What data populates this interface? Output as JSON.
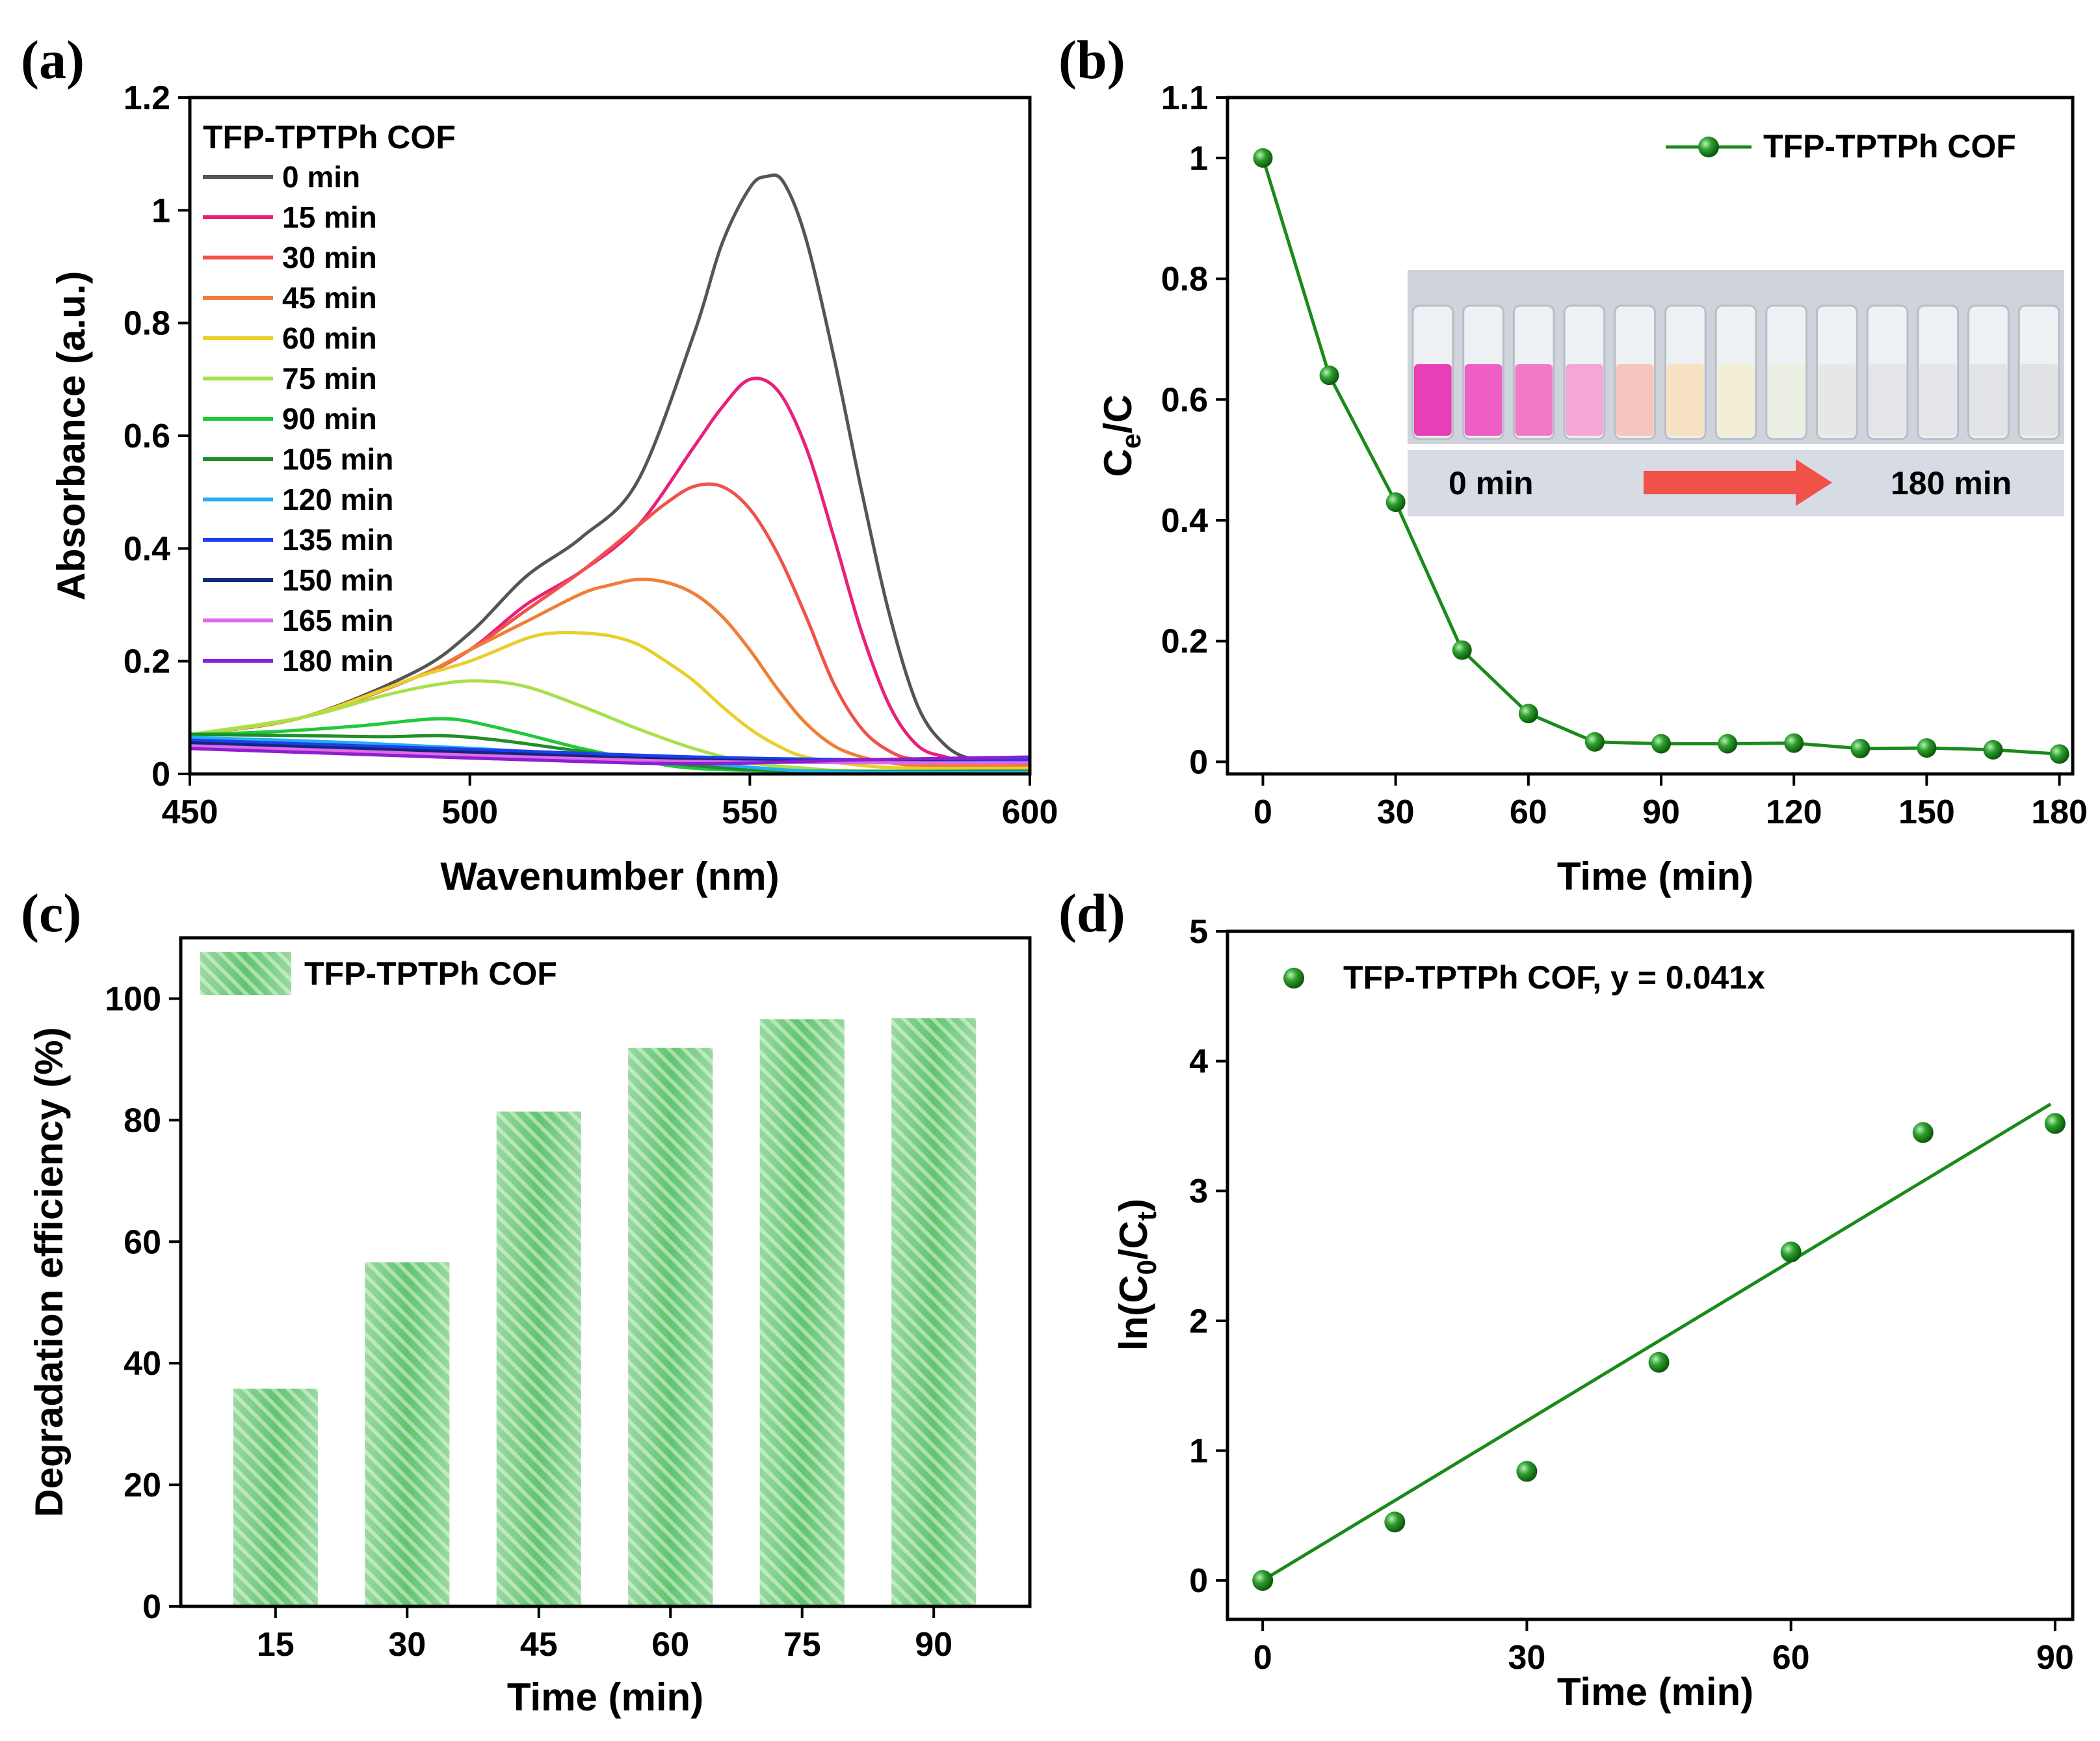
{
  "colors": {
    "series_green": "#1a8a1a",
    "bar_green": "#5cc46a",
    "bar_green_light": "#a9e4ac",
    "arrow_red": "#f0524a",
    "inset_label_bg": "#d8dde6"
  },
  "chart_data": [
    {
      "id": "a",
      "panel_label": "(a)",
      "type": "line",
      "xlabel": "Wavenumber (nm)",
      "ylabel": "Absorbance (a.u.)",
      "xlim": [
        450,
        600
      ],
      "ylim": [
        0,
        1.2
      ],
      "xticks": [
        450,
        500,
        550,
        600
      ],
      "xtick_labels": [
        "450",
        "500",
        "550",
        "600"
      ],
      "yticks": [
        0,
        0.2,
        0.4,
        0.6,
        0.8,
        1,
        1.2
      ],
      "ytick_labels": [
        "0",
        "0.2",
        "0.4",
        "0.6",
        "0.8",
        "1",
        "1.2"
      ],
      "legend_title": "TFP-TPTPh COF",
      "series": [
        {
          "name": "0 min",
          "color": "#555555",
          "values": {
            "x": [
              450,
              470,
              490,
              500,
              510,
              520,
              530,
              540,
              545,
              550,
              553,
              556,
              560,
              565,
              570,
              575,
              580,
              585,
              590,
              595,
              600
            ],
            "y": [
              0.07,
              0.1,
              0.18,
              0.25,
              0.35,
              0.42,
              0.52,
              0.78,
              0.94,
              1.04,
              1.06,
              1.05,
              0.95,
              0.74,
              0.5,
              0.28,
              0.12,
              0.05,
              0.025,
              0.02,
              0.02
            ]
          }
        },
        {
          "name": "15 min",
          "color": "#e8207a",
          "values": {
            "x": [
              450,
              470,
              490,
              500,
              510,
              520,
              530,
              540,
              545,
              550,
              555,
              560,
              565,
              570,
              575,
              580,
              585,
              590,
              600
            ],
            "y": [
              0.07,
              0.1,
              0.17,
              0.22,
              0.3,
              0.36,
              0.44,
              0.58,
              0.65,
              0.7,
              0.68,
              0.58,
              0.42,
              0.25,
              0.12,
              0.05,
              0.03,
              0.02,
              0.02
            ]
          }
        },
        {
          "name": "30 min",
          "color": "#f0524a",
          "values": {
            "x": [
              450,
              470,
              490,
              500,
              510,
              520,
              530,
              535,
              540,
              545,
              550,
              555,
              560,
              565,
              570,
              575,
              580,
              590,
              600
            ],
            "y": [
              0.07,
              0.1,
              0.17,
              0.22,
              0.29,
              0.36,
              0.44,
              0.48,
              0.51,
              0.51,
              0.47,
              0.39,
              0.28,
              0.16,
              0.08,
              0.04,
              0.025,
              0.02,
              0.02
            ]
          }
        },
        {
          "name": "45 min",
          "color": "#f07e36",
          "values": {
            "x": [
              450,
              470,
              490,
              500,
              510,
              520,
              525,
              530,
              535,
              540,
              545,
              550,
              555,
              560,
              565,
              570,
              575,
              580,
              590,
              600
            ],
            "y": [
              0.07,
              0.1,
              0.17,
              0.22,
              0.27,
              0.32,
              0.335,
              0.345,
              0.34,
              0.32,
              0.28,
              0.22,
              0.15,
              0.09,
              0.05,
              0.03,
              0.02,
              0.015,
              0.015,
              0.015
            ]
          }
        },
        {
          "name": "60 min",
          "color": "#e8cf2a",
          "values": {
            "x": [
              450,
              470,
              490,
              500,
              510,
              515,
              520,
              525,
              530,
              535,
              540,
              545,
              550,
              555,
              560,
              570,
              580,
              600
            ],
            "y": [
              0.07,
              0.1,
              0.17,
              0.2,
              0.24,
              0.25,
              0.25,
              0.245,
              0.23,
              0.2,
              0.165,
              0.12,
              0.08,
              0.05,
              0.03,
              0.015,
              0.01,
              0.01
            ]
          }
        },
        {
          "name": "75 min",
          "color": "#a8e04a",
          "values": {
            "x": [
              450,
              470,
              485,
              495,
              502,
              510,
              520,
              530,
              540,
              550,
              560,
              570,
              600
            ],
            "y": [
              0.07,
              0.1,
              0.14,
              0.16,
              0.165,
              0.155,
              0.12,
              0.08,
              0.045,
              0.02,
              0.01,
              0.005,
              0.005
            ]
          }
        },
        {
          "name": "90 min",
          "color": "#22c83a",
          "values": {
            "x": [
              450,
              465,
              480,
              490,
              495,
              500,
              510,
              520,
              530,
              540,
              560,
              600
            ],
            "y": [
              0.07,
              0.075,
              0.085,
              0.095,
              0.098,
              0.093,
              0.07,
              0.045,
              0.025,
              0.01,
              0.005,
              0.005
            ]
          }
        },
        {
          "name": "105 min",
          "color": "#1f8f2a",
          "values": {
            "x": [
              450,
              470,
              485,
              495,
              505,
              520,
              540,
              560,
              600
            ],
            "y": [
              0.07,
              0.068,
              0.066,
              0.068,
              0.06,
              0.04,
              0.015,
              0.005,
              0.005
            ]
          }
        },
        {
          "name": "120 min",
          "color": "#26aef0",
          "values": {
            "x": [
              450,
              480,
              510,
              540,
              560,
              580,
              600
            ],
            "y": [
              0.065,
              0.055,
              0.04,
              0.02,
              0.005,
              0.003,
              0.003
            ]
          }
        },
        {
          "name": "135 min",
          "color": "#1b3ff0",
          "values": {
            "x": [
              450,
              480,
              510,
              540,
              570,
              600
            ],
            "y": [
              0.06,
              0.05,
              0.04,
              0.03,
              0.025,
              0.025
            ]
          }
        },
        {
          "name": "150 min",
          "color": "#13287a",
          "values": {
            "x": [
              450,
              480,
              510,
              540,
              570,
              600
            ],
            "y": [
              0.055,
              0.045,
              0.035,
              0.025,
              0.022,
              0.02
            ]
          }
        },
        {
          "name": "165 min",
          "color": "#e06ae8",
          "values": {
            "x": [
              450,
              480,
              510,
              540,
              570,
              600
            ],
            "y": [
              0.05,
              0.04,
              0.03,
              0.022,
              0.02,
              0.02
            ]
          }
        },
        {
          "name": "180 min",
          "color": "#8c1fd0",
          "values": {
            "x": [
              450,
              480,
              510,
              540,
              570,
              600
            ],
            "y": [
              0.045,
              0.035,
              0.025,
              0.018,
              0.025,
              0.03
            ]
          }
        }
      ]
    },
    {
      "id": "b",
      "panel_label": "(b)",
      "type": "line",
      "xlabel": "Time (min)",
      "ylabel_main": "C",
      "ylabel_sub": "e",
      "ylabel_tail": "/C",
      "xlim": [
        -8,
        183
      ],
      "ylim": [
        -0.02,
        1.1
      ],
      "xticks": [
        0,
        30,
        60,
        90,
        120,
        150,
        180
      ],
      "xtick_labels": [
        "0",
        "30",
        "60",
        "90",
        "120",
        "150",
        "180"
      ],
      "yticks": [
        0,
        0.2,
        0.4,
        0.6,
        0.8,
        1,
        1.1
      ],
      "ytick_labels": [
        "0",
        "0.2",
        "0.4",
        "0.6",
        "0.8",
        "1",
        "1.1"
      ],
      "series": [
        {
          "name": "TFP-TPTPh COF",
          "x": [
            0,
            15,
            30,
            45,
            60,
            75,
            90,
            105,
            120,
            135,
            150,
            165,
            180
          ],
          "y": [
            1.0,
            0.64,
            0.43,
            0.185,
            0.08,
            0.033,
            0.03,
            0.03,
            0.031,
            0.022,
            0.023,
            0.02,
            0.013
          ]
        }
      ],
      "inset": {
        "start_label": "0 min",
        "end_label": "180 min",
        "vial_colors": [
          "#e83fb6",
          "#ee5ec4",
          "#f07ac8",
          "#f5a6d8",
          "#f6c5bd",
          "#f6e1c2",
          "#f2efd6",
          "#ecefe4",
          "#e6e8e6",
          "#e3e5e8",
          "#e3e5e8",
          "#e1e3e6",
          "#e0e2e5"
        ]
      }
    },
    {
      "id": "c",
      "panel_label": "(c)",
      "type": "bar",
      "xlabel": "Time (min)",
      "ylabel": "Degradation efficiency (%)",
      "categories": [
        "15",
        "30",
        "45",
        "60",
        "75",
        "90"
      ],
      "values": [
        35.8,
        56.6,
        81.4,
        91.9,
        96.6,
        96.8
      ],
      "ylim": [
        0,
        110
      ],
      "yticks": [
        0,
        20,
        40,
        60,
        80,
        100
      ],
      "ytick_labels": [
        "0",
        "20",
        "40",
        "60",
        "80",
        "100"
      ],
      "legend": "TFP-TPTPh COF"
    },
    {
      "id": "d",
      "panel_label": "(d)",
      "type": "scatter",
      "xlabel": "Time (min)",
      "ylabel_main": "ln(C",
      "ylabel_sub1": "0",
      "ylabel_mid": "/C",
      "ylabel_sub2": "t",
      "ylabel_tail": ")",
      "xlim": [
        -4,
        92
      ],
      "ylim": [
        -0.3,
        5
      ],
      "xticks": [
        0,
        30,
        60,
        90
      ],
      "xtick_labels": [
        "0",
        "30",
        "60",
        "90"
      ],
      "yticks": [
        0,
        1,
        2,
        3,
        4,
        5
      ],
      "ytick_labels": [
        "0",
        "1",
        "2",
        "3",
        "4",
        "5"
      ],
      "series": [
        {
          "name": "TFP-TPTPh COF, y = 0.041x",
          "x": [
            0,
            15,
            30,
            45,
            60,
            75,
            90
          ],
          "y": [
            0,
            0.45,
            0.84,
            1.68,
            2.53,
            3.45,
            3.52
          ]
        }
      ],
      "fit": {
        "slope": 0.041,
        "intercept": 0,
        "x_range": [
          0,
          89.5
        ]
      }
    }
  ]
}
